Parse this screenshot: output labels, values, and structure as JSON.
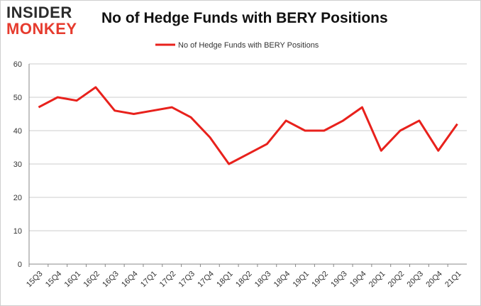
{
  "header": {
    "logo_line1": "INSIDER",
    "logo_line2": "MONKEY",
    "title": "No of Hedge Funds with BERY Positions"
  },
  "colors": {
    "line": "#e8211c",
    "grid": "#cccccc",
    "axis": "#888888"
  },
  "chart_data": {
    "type": "line",
    "title": "No of Hedge Funds with BERY Positions",
    "xlabel": "",
    "ylabel": "",
    "ylim": [
      0,
      60
    ],
    "yticks": [
      0,
      10,
      20,
      30,
      40,
      50,
      60
    ],
    "grid": true,
    "legend": "top-center",
    "categories": [
      "15Q3",
      "15Q4",
      "16Q1",
      "16Q2",
      "16Q3",
      "16Q4",
      "17Q1",
      "17Q2",
      "17Q3",
      "17Q4",
      "18Q1",
      "18Q2",
      "18Q3",
      "18Q4",
      "19Q1",
      "19Q2",
      "19Q3",
      "19Q4",
      "20Q1",
      "20Q2",
      "20Q3",
      "20Q4",
      "21Q1"
    ],
    "series": [
      {
        "name": "No of Hedge Funds with BERY Positions",
        "values": [
          47,
          50,
          49,
          53,
          46,
          45,
          46,
          47,
          44,
          38,
          30,
          33,
          36,
          43,
          40,
          40,
          43,
          47,
          34,
          40,
          43,
          34,
          42
        ]
      }
    ]
  }
}
